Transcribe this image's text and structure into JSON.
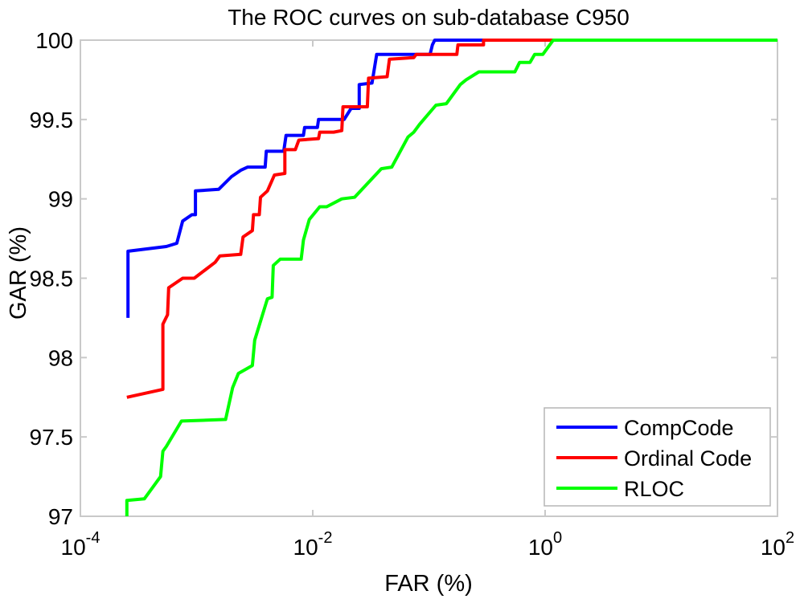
{
  "title": "The ROC curves on sub-database C950",
  "axes": {
    "xlabel": "FAR (%)",
    "ylabel": "GAR (%)",
    "x_tick_labels": [
      {
        "base": "10",
        "exponent": "-4"
      },
      {
        "base": "10",
        "exponent": "-2"
      },
      {
        "base": "10",
        "exponent": "0"
      },
      {
        "base": "10",
        "exponent": "2"
      }
    ],
    "x_tick_log_values": [
      -4,
      -2,
      0,
      2
    ],
    "y_tick_labels": [
      "100",
      "99.5",
      "99",
      "98.5",
      "98",
      "97.5",
      "97"
    ],
    "y_tick_values": [
      100,
      99.5,
      99,
      98.5,
      98,
      97.5,
      97
    ],
    "frame_color": "#c9c9c9"
  },
  "legend": {
    "items": [
      {
        "label": "CompCode",
        "color": "#0000ff"
      },
      {
        "label": "Ordinal Code",
        "color": "#ff0000"
      },
      {
        "label": "RLOC",
        "color": "#00ff00"
      }
    ],
    "border_color": "#b5b5b5"
  },
  "chart_data": {
    "type": "line",
    "title": "The ROC curves on sub-database C950",
    "xlabel": "FAR (%)",
    "ylabel": "GAR (%)",
    "x_scale": "log10",
    "xlim_log": [
      -4,
      2
    ],
    "ylim": [
      97,
      100
    ],
    "grid": false,
    "legend_position": "lower right",
    "series": [
      {
        "name": "CompCode",
        "color": "#0000ff",
        "points": [
          [
            -3.59,
            98.25
          ],
          [
            -3.59,
            98.67
          ],
          [
            -3.26,
            98.7
          ],
          [
            -3.17,
            98.72
          ],
          [
            -3.12,
            98.86
          ],
          [
            -3.04,
            98.9
          ],
          [
            -3.01,
            98.9
          ],
          [
            -3.01,
            99.05
          ],
          [
            -2.81,
            99.06
          ],
          [
            -2.7,
            99.14
          ],
          [
            -2.62,
            99.18
          ],
          [
            -2.56,
            99.2
          ],
          [
            -2.41,
            99.2
          ],
          [
            -2.4,
            99.3
          ],
          [
            -2.25,
            99.3
          ],
          [
            -2.23,
            99.4
          ],
          [
            -2.08,
            99.4
          ],
          [
            -2.07,
            99.45
          ],
          [
            -1.96,
            99.45
          ],
          [
            -1.95,
            99.5
          ],
          [
            -1.73,
            99.5
          ],
          [
            -1.67,
            99.57
          ],
          [
            -1.6,
            99.57
          ],
          [
            -1.6,
            99.72
          ],
          [
            -1.49,
            99.73
          ],
          [
            -1.45,
            99.91
          ],
          [
            -0.99,
            99.91
          ],
          [
            -0.97,
            99.97
          ],
          [
            -0.95,
            100
          ],
          [
            2,
            100
          ]
        ]
      },
      {
        "name": "Ordinal Code",
        "color": "#ff0000",
        "points": [
          [
            -3.6,
            97.75
          ],
          [
            -3.29,
            97.8
          ],
          [
            -3.29,
            98.21
          ],
          [
            -3.25,
            98.27
          ],
          [
            -3.24,
            98.44
          ],
          [
            -3.12,
            98.5
          ],
          [
            -3.02,
            98.5
          ],
          [
            -2.84,
            98.6
          ],
          [
            -2.8,
            98.64
          ],
          [
            -2.62,
            98.65
          ],
          [
            -2.6,
            98.76
          ],
          [
            -2.52,
            98.8
          ],
          [
            -2.51,
            98.9
          ],
          [
            -2.46,
            98.9
          ],
          [
            -2.45,
            99.01
          ],
          [
            -2.39,
            99.05
          ],
          [
            -2.33,
            99.15
          ],
          [
            -2.24,
            99.16
          ],
          [
            -2.24,
            99.31
          ],
          [
            -2.15,
            99.31
          ],
          [
            -2.12,
            99.37
          ],
          [
            -1.95,
            99.38
          ],
          [
            -1.94,
            99.42
          ],
          [
            -1.82,
            99.42
          ],
          [
            -1.75,
            99.43
          ],
          [
            -1.74,
            99.58
          ],
          [
            -1.66,
            99.58
          ],
          [
            -1.53,
            99.58
          ],
          [
            -1.52,
            99.76
          ],
          [
            -1.36,
            99.77
          ],
          [
            -1.34,
            99.88
          ],
          [
            -1.13,
            99.89
          ],
          [
            -1.11,
            99.91
          ],
          [
            -0.76,
            99.91
          ],
          [
            -0.75,
            99.97
          ],
          [
            -0.53,
            99.97
          ],
          [
            -0.53,
            100
          ],
          [
            2,
            100
          ]
        ]
      },
      {
        "name": "RLOC",
        "color": "#00ff00",
        "points": [
          [
            -3.6,
            97.0
          ],
          [
            -3.6,
            97.1
          ],
          [
            -3.45,
            97.11
          ],
          [
            -3.31,
            97.25
          ],
          [
            -3.29,
            97.41
          ],
          [
            -3.26,
            97.44
          ],
          [
            -3.13,
            97.6
          ],
          [
            -2.75,
            97.61
          ],
          [
            -2.69,
            97.81
          ],
          [
            -2.64,
            97.9
          ],
          [
            -2.52,
            97.95
          ],
          [
            -2.5,
            98.11
          ],
          [
            -2.39,
            98.37
          ],
          [
            -2.35,
            98.38
          ],
          [
            -2.34,
            98.58
          ],
          [
            -2.28,
            98.62
          ],
          [
            -2.1,
            98.62
          ],
          [
            -2.08,
            98.74
          ],
          [
            -2.03,
            98.87
          ],
          [
            -1.94,
            98.95
          ],
          [
            -1.88,
            98.95
          ],
          [
            -1.75,
            99.0
          ],
          [
            -1.64,
            99.01
          ],
          [
            -1.41,
            99.19
          ],
          [
            -1.32,
            99.2
          ],
          [
            -1.18,
            99.39
          ],
          [
            -1.13,
            99.42
          ],
          [
            -1.08,
            99.47
          ],
          [
            -0.94,
            99.59
          ],
          [
            -0.85,
            99.6
          ],
          [
            -0.73,
            99.72
          ],
          [
            -0.68,
            99.75
          ],
          [
            -0.57,
            99.8
          ],
          [
            -0.26,
            99.8
          ],
          [
            -0.22,
            99.86
          ],
          [
            -0.13,
            99.86
          ],
          [
            -0.09,
            99.91
          ],
          [
            -0.02,
            99.91
          ],
          [
            0.07,
            100
          ],
          [
            2,
            100
          ]
        ]
      }
    ]
  }
}
